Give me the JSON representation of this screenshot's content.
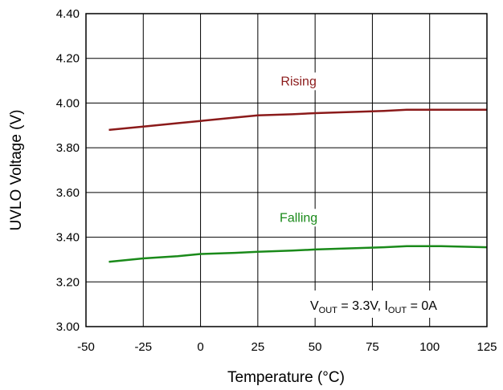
{
  "chart_data": {
    "type": "line",
    "title": "",
    "xlabel": "Temperature (°C)",
    "ylabel": "UVLO Voltage (V)",
    "xlim": [
      -50,
      125
    ],
    "ylim": [
      3.0,
      4.4
    ],
    "x_ticks": [
      "-50",
      "-25",
      "0",
      "25",
      "50",
      "75",
      "100",
      "125"
    ],
    "y_ticks": [
      "3.00",
      "3.20",
      "3.40",
      "3.60",
      "3.80",
      "4.00",
      "4.20",
      "4.40"
    ],
    "grid": true,
    "series": [
      {
        "name": "Rising",
        "color": "#8b1a1a",
        "x": [
          -40,
          -25,
          -10,
          0,
          15,
          25,
          40,
          50,
          65,
          80,
          90,
          105,
          125
        ],
        "y": [
          3.88,
          3.895,
          3.91,
          3.92,
          3.935,
          3.945,
          3.95,
          3.955,
          3.96,
          3.965,
          3.97,
          3.97,
          3.97
        ]
      },
      {
        "name": "Falling",
        "color": "#1a8a1a",
        "x": [
          -40,
          -25,
          -10,
          0,
          15,
          25,
          40,
          50,
          65,
          80,
          90,
          105,
          125
        ],
        "y": [
          3.29,
          3.305,
          3.315,
          3.325,
          3.33,
          3.335,
          3.34,
          3.345,
          3.35,
          3.355,
          3.36,
          3.36,
          3.355
        ]
      }
    ],
    "annotation": {
      "v_main": "V",
      "v_sub": "OUT",
      "v_rest": " = 3.3V, I",
      "i_sub": "OUT",
      "i_rest": " = 0A"
    }
  }
}
